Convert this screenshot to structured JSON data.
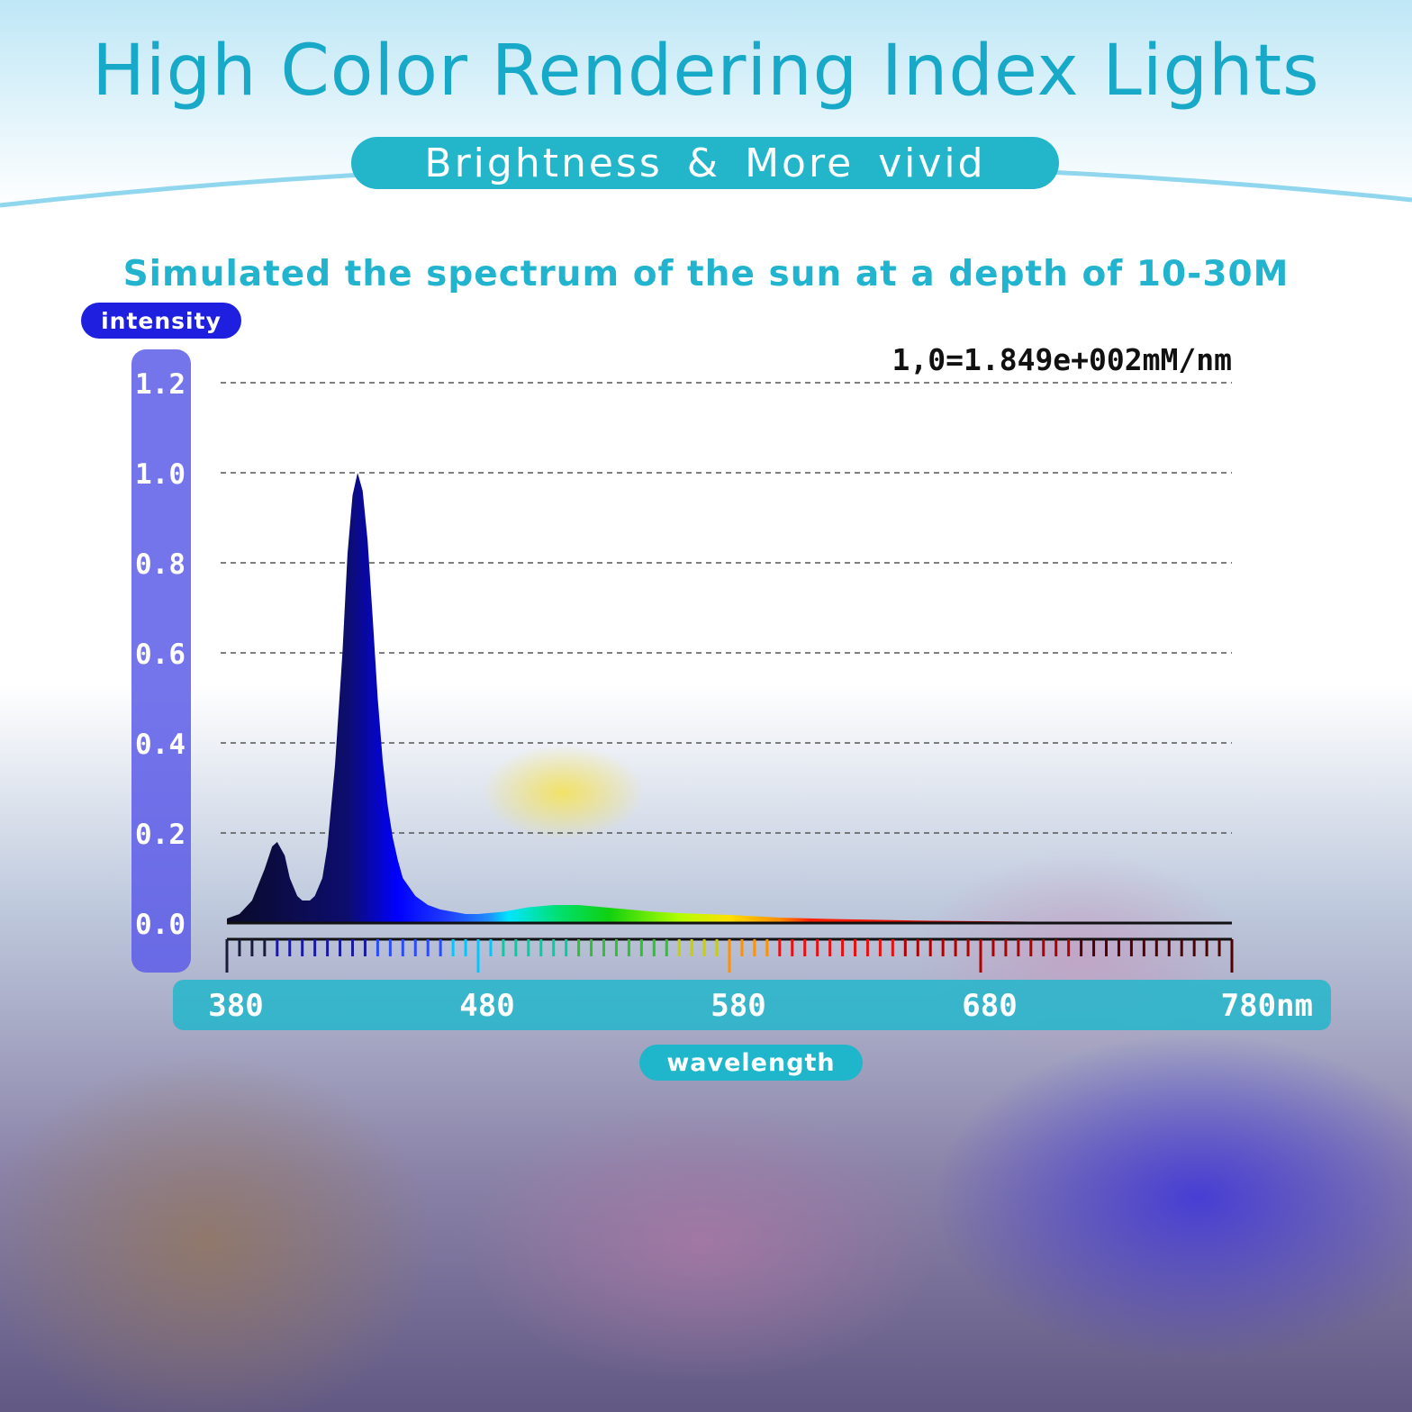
{
  "header": {
    "title": "High Color Rendering Index Lights",
    "subtitle": "Brightness & More vivid",
    "accent_color": "#17a9c7"
  },
  "chart_data": {
    "type": "area",
    "title": "Simulated the spectrum of the sun at a depth of 10-30M",
    "ylabel": "intensity",
    "xlabel": "wavelength",
    "unit_note": "1,0=1.849e+002mM/nm",
    "ylim": [
      0,
      1.2
    ],
    "xlim": [
      380,
      780
    ],
    "y_ticks": [
      "0.0",
      "0.2",
      "0.4",
      "0.6",
      "0.8",
      "1.0",
      "1.2"
    ],
    "x_ticks": [
      "380",
      "480",
      "580",
      "680",
      "780nm"
    ],
    "grid": true,
    "series": [
      {
        "x": [
          380,
          385,
          390,
          395,
          398,
          400,
          403,
          405,
          408,
          410,
          413,
          415,
          418,
          420,
          423,
          426,
          428,
          430,
          432,
          434,
          436,
          438,
          440,
          442,
          444,
          446,
          448,
          450,
          455,
          460,
          465,
          470,
          475,
          480,
          490,
          500,
          510,
          520,
          530,
          540,
          550,
          560,
          570,
          580,
          590,
          600,
          620,
          640,
          660,
          680,
          700,
          720,
          740,
          760,
          780
        ],
        "y": [
          0.01,
          0.02,
          0.05,
          0.12,
          0.17,
          0.18,
          0.15,
          0.1,
          0.06,
          0.05,
          0.05,
          0.06,
          0.1,
          0.17,
          0.35,
          0.6,
          0.82,
          0.95,
          1.0,
          0.96,
          0.85,
          0.68,
          0.5,
          0.36,
          0.26,
          0.19,
          0.14,
          0.1,
          0.06,
          0.04,
          0.03,
          0.025,
          0.02,
          0.02,
          0.025,
          0.035,
          0.04,
          0.04,
          0.035,
          0.03,
          0.025,
          0.022,
          0.02,
          0.018,
          0.015,
          0.012,
          0.009,
          0.007,
          0.005,
          0.004,
          0.003,
          0.002,
          0.001,
          0.001,
          0.0
        ]
      }
    ]
  }
}
